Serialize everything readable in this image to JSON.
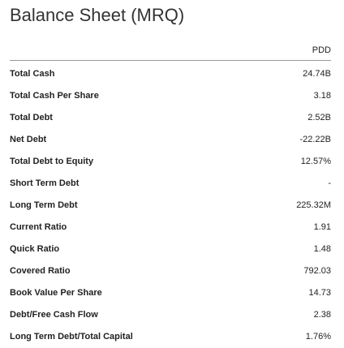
{
  "header": {
    "title": "Balance Sheet (MRQ)"
  },
  "table": {
    "columns": [
      "PDD"
    ],
    "rows": [
      [
        "Total Cash",
        "24.74B"
      ],
      [
        "Total Cash Per Share",
        "3.18"
      ],
      [
        "Total Debt",
        "2.52B"
      ],
      [
        "Net Debt",
        "-22.22B"
      ],
      [
        "Total Debt to Equity",
        "12.57%"
      ],
      [
        "Short Term Debt",
        "-"
      ],
      [
        "Long Term Debt",
        "225.32M"
      ],
      [
        "Current Ratio",
        "1.91"
      ],
      [
        "Quick Ratio",
        "1.48"
      ],
      [
        "Covered Ratio",
        "792.03"
      ],
      [
        "Book Value Per Share",
        "14.73"
      ],
      [
        "Debt/Free Cash Flow",
        "2.38"
      ],
      [
        "Long Term Debt/Total Capital",
        "1.76%"
      ]
    ]
  }
}
